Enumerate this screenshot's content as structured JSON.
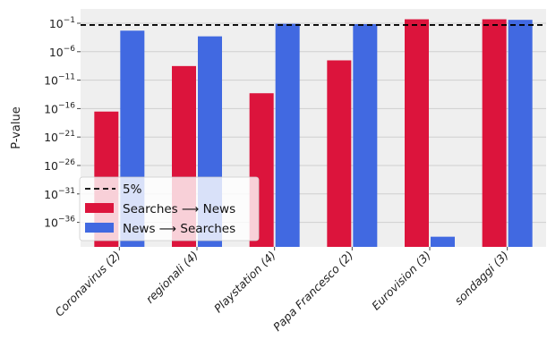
{
  "chart_data": {
    "type": "bar",
    "ylabel": "P-value",
    "yscale": "log",
    "ylim": [
      1e-41,
      1
    ],
    "yticks": [
      {
        "value": 0.1,
        "base": "10",
        "exp": "−1"
      },
      {
        "value": 1e-06,
        "base": "10",
        "exp": "−6"
      },
      {
        "value": 1e-11,
        "base": "10",
        "exp": "−11"
      },
      {
        "value": 1e-16,
        "base": "10",
        "exp": "−16"
      },
      {
        "value": 1e-21,
        "base": "10",
        "exp": "−21"
      },
      {
        "value": 1e-26,
        "base": "10",
        "exp": "−26"
      },
      {
        "value": 1e-31,
        "base": "10",
        "exp": "−31"
      },
      {
        "value": 1e-36,
        "base": "10",
        "exp": "−36"
      }
    ],
    "categories": [
      "Coronavirus (2)",
      "regionali (4)",
      "Playstation (4)",
      "Papa Francesco (2)",
      "Eurovision (3)",
      "sondaggi (3)"
    ],
    "series": [
      {
        "name": "Searches ⟶ News",
        "color": "#dc143c",
        "values": [
          3e-17,
          3e-09,
          5e-14,
          3e-08,
          0.5,
          0.5
        ]
      },
      {
        "name": "News ⟶ Searches",
        "color": "#4169e1",
        "values": [
          0.005,
          0.0005,
          0.08,
          0.07,
          3e-39,
          0.4
        ]
      }
    ],
    "reference_line": {
      "label": "5%",
      "value": 0.05
    },
    "grid": true,
    "legend_position": "lower-left",
    "background": "#efefef"
  }
}
